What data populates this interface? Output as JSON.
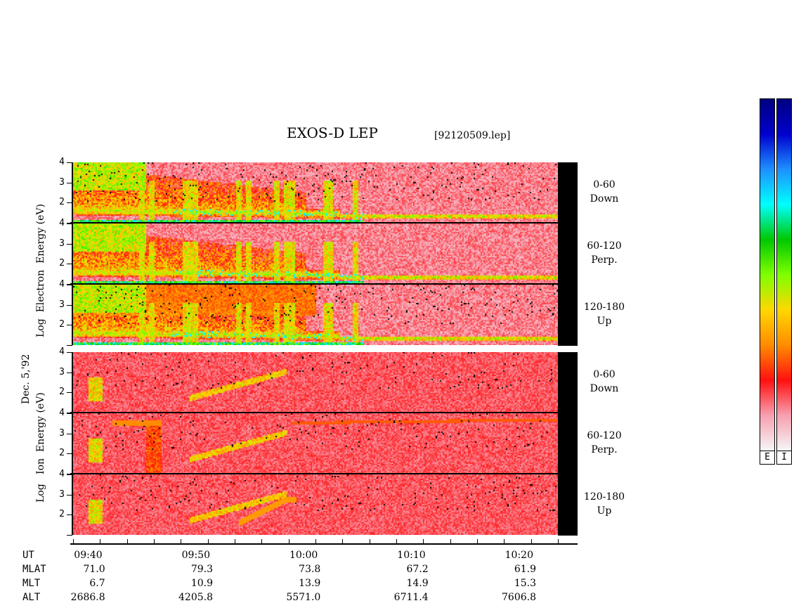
{
  "title": "EXOS-D LEP",
  "filename": "[92120509.lep]",
  "date_label": "Dec. 5,'92",
  "electron_ylabel": "Log  Electron  Energy (eV)",
  "ion_ylabel": "Log   Ion  Energy (eV)",
  "colorbar_labels": [
    "E",
    "I"
  ],
  "colorbar_colors": [
    "#f6f6f6",
    "#f7a0b0",
    "#ff1010",
    "#ff8c00",
    "#ffd700",
    "#7fff00",
    "#00c800",
    "#00ffff",
    "#1e90ff",
    "#0000cd",
    "#000080"
  ],
  "ephemeris": {
    "rows": [
      "UT",
      "MLAT",
      "MLT",
      "ALT"
    ],
    "ticks": [
      {
        "UT": "09:40",
        "MLAT": "71.0",
        "MLT": "6.7",
        "ALT": "2686.8"
      },
      {
        "UT": "09:50",
        "MLAT": "79.3",
        "MLT": "10.9",
        "ALT": "4205.8"
      },
      {
        "UT": "10:00",
        "MLAT": "73.8",
        "MLT": "13.9",
        "ALT": "5571.0"
      },
      {
        "UT": "10:10",
        "MLAT": "67.2",
        "MLT": "14.9",
        "ALT": "6711.4"
      },
      {
        "UT": "10:20",
        "MLAT": "61.9",
        "MLT": "15.3",
        "ALT": "7606.8"
      }
    ]
  },
  "chart_data": {
    "type": "heatmap",
    "x_range_ut": [
      "09:38",
      "10:23"
    ],
    "y_range_log_eV": [
      1,
      4
    ],
    "y_ticks": [
      "1",
      "2",
      "3",
      "4"
    ],
    "panels": [
      {
        "species": "Electron",
        "angle": "0-60",
        "dir": "Down"
      },
      {
        "species": "Electron",
        "angle": "60-120",
        "dir": "Perp."
      },
      {
        "species": "Electron",
        "angle": "120-180",
        "dir": "Up"
      },
      {
        "species": "Ion",
        "angle": "0-60",
        "dir": "Down"
      },
      {
        "species": "Ion",
        "angle": "60-120",
        "dir": "Perp."
      },
      {
        "species": "Ion",
        "angle": "120-180",
        "dir": "Up"
      }
    ]
  }
}
